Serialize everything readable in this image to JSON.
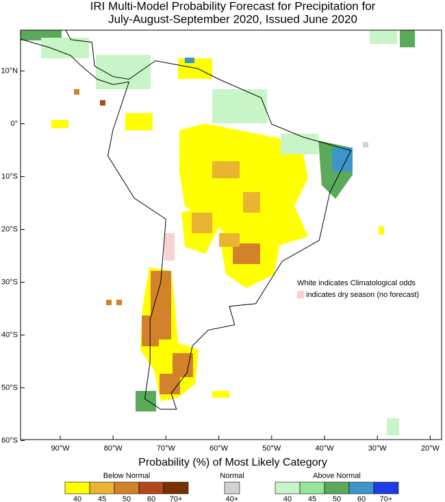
{
  "header": {
    "title_line1": "IRI Multi-Model Probability Forecast for Precipitation for",
    "title_line2": "July-August-September 2020, Issued June 2020"
  },
  "map": {
    "lat_ticks": [
      "10°N",
      "0°",
      "10°S",
      "20°S",
      "30°S",
      "40°S",
      "50°S",
      "60°S"
    ],
    "lon_ticks": [
      "90°W",
      "80°W",
      "70°W",
      "60°W",
      "50°W",
      "40°W",
      "30°W",
      "20°W"
    ],
    "note_line1": "White indicates Climatological odds",
    "note_line2": "indicates dry season (no forecast)"
  },
  "legend": {
    "title": "Probability (%) of Most Likely Category",
    "groups": [
      {
        "name": "Below Normal",
        "labels": [
          "40",
          "45",
          "50",
          "60",
          "70+"
        ],
        "colors": [
          "#ffff00",
          "#e8b432",
          "#d2822a",
          "#b4461e",
          "#783200"
        ]
      },
      {
        "name": "Normal",
        "labels": [
          "40+"
        ],
        "colors": [
          "#d2d2d2"
        ]
      },
      {
        "name": "Above Normal",
        "labels": [
          "40",
          "45",
          "50",
          "60",
          "70+"
        ],
        "colors": [
          "#c8f5c8",
          "#96e696",
          "#5aaa5a",
          "#3c96c8",
          "#1e3ce6"
        ]
      }
    ]
  }
}
